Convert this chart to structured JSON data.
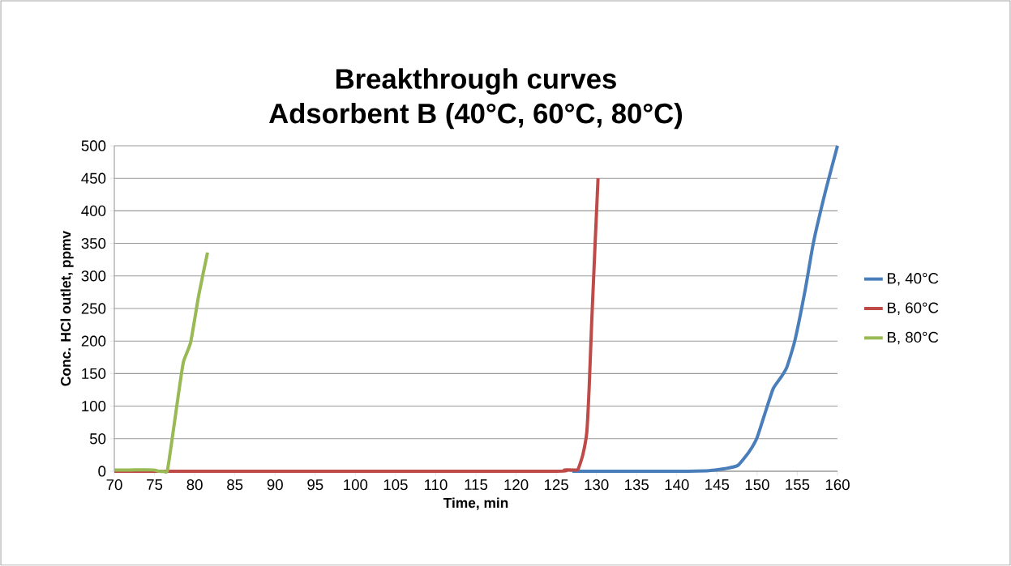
{
  "chart_data": {
    "type": "line",
    "title": "Breakthrough curves\nAdsorbent B (40°C, 60°C, 80°C)",
    "xlabel": "Time, min",
    "ylabel": "Conc. HCl outlet, ppmv",
    "xlim": [
      70,
      160
    ],
    "xticks": [
      70,
      75,
      80,
      85,
      90,
      95,
      100,
      105,
      110,
      115,
      120,
      125,
      130,
      135,
      140,
      145,
      150,
      155,
      160
    ],
    "ylim": [
      0,
      500
    ],
    "yticks": [
      0,
      50,
      100,
      150,
      200,
      250,
      300,
      350,
      400,
      450,
      500
    ],
    "grid": "y",
    "legend": "right",
    "marker": "none",
    "line_style": "solid",
    "series": [
      {
        "name": "B, 40°C",
        "color": "#4a7ebb",
        "x": [
          127,
          135,
          140,
          144,
          146,
          147.6,
          149,
          150,
          151,
          152,
          153,
          153.7,
          154.7,
          156,
          157,
          158.5,
          160
        ],
        "values": [
          0,
          0,
          0,
          1,
          4,
          9,
          30,
          52,
          90,
          127,
          145,
          160,
          201,
          280,
          351,
          430,
          500
        ]
      },
      {
        "name": "B, 60°C",
        "color": "#be4b48",
        "x": [
          70,
          100,
          125,
          126,
          127,
          127.7,
          128.3,
          128.8,
          129.1,
          129.4,
          129.8,
          130.2
        ],
        "values": [
          0,
          0,
          0,
          2,
          2,
          3,
          25,
          60,
          130,
          226,
          340,
          450
        ]
      },
      {
        "name": "B, 80°C",
        "color": "#98b954",
        "x": [
          70,
          72,
          74.8,
          75.5,
          76.1,
          76.6,
          77.2,
          78,
          78.6,
          79.5,
          80.5,
          81.6
        ],
        "values": [
          2,
          2,
          2,
          0,
          0,
          1,
          50,
          120,
          168,
          198,
          270,
          336
        ]
      }
    ]
  }
}
